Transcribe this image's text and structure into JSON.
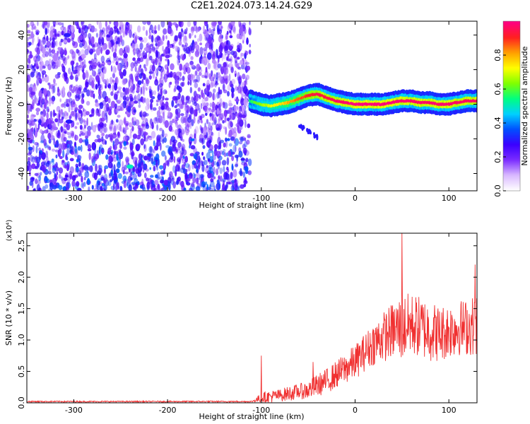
{
  "title": "C2E1.2024.073.14.24.G29",
  "chart_data": [
    {
      "type": "heatmap",
      "title": "",
      "xlabel": "Height of straight line (km)",
      "ylabel": "Frequency (Hz)",
      "xlim": [
        -350,
        130
      ],
      "ylim": [
        -50,
        48
      ],
      "xticks": [
        -300,
        -200,
        -100,
        0,
        100
      ],
      "yticks": [
        -40,
        -20,
        0,
        20,
        40
      ],
      "colorbar": {
        "label": "Normalized spectral amplitude",
        "range": [
          0,
          1
        ],
        "ticks": [
          "0.0",
          "0.2",
          "0.4",
          "0.6",
          "0.8"
        ],
        "tick_values": [
          0.0,
          0.2,
          0.4,
          0.6,
          0.8
        ],
        "colors": [
          "#ffffff",
          "#d9b8ff",
          "#7a2cff",
          "#3a00ff",
          "#0050ff",
          "#00d0ff",
          "#00ff80",
          "#80ff00",
          "#ffff00",
          "#ffa000",
          "#ff2020",
          "#ff0080"
        ]
      },
      "noise_region_x": [
        -350,
        -112
      ],
      "noise_amplitude": [
        0.1,
        0.3
      ],
      "signal_track": [
        {
          "x": -112,
          "y": 2,
          "amp": 0.55
        },
        {
          "x": -100,
          "y": 0,
          "amp": 0.65
        },
        {
          "x": -90,
          "y": -1,
          "amp": 0.7
        },
        {
          "x": -80,
          "y": 0,
          "amp": 0.75
        },
        {
          "x": -70,
          "y": 1,
          "amp": 0.8
        },
        {
          "x": -60,
          "y": 3,
          "amp": 0.85
        },
        {
          "x": -50,
          "y": 5,
          "amp": 0.9
        },
        {
          "x": -40,
          "y": 6,
          "amp": 0.95
        },
        {
          "x": -30,
          "y": 4,
          "amp": 0.95
        },
        {
          "x": -20,
          "y": 2,
          "amp": 0.97
        },
        {
          "x": -10,
          "y": 1,
          "amp": 0.98
        },
        {
          "x": 0,
          "y": 0,
          "amp": 1.0
        },
        {
          "x": 10,
          "y": 0,
          "amp": 1.0
        },
        {
          "x": 20,
          "y": 0,
          "amp": 1.0
        },
        {
          "x": 30,
          "y": 0,
          "amp": 0.99
        },
        {
          "x": 40,
          "y": 1,
          "amp": 0.99
        },
        {
          "x": 50,
          "y": 2,
          "amp": 0.99
        },
        {
          "x": 60,
          "y": 2,
          "amp": 0.98
        },
        {
          "x": 70,
          "y": 1,
          "amp": 0.98
        },
        {
          "x": 80,
          "y": 1,
          "amp": 0.98
        },
        {
          "x": 90,
          "y": 0,
          "amp": 0.98
        },
        {
          "x": 100,
          "y": 0,
          "amp": 0.98
        },
        {
          "x": 110,
          "y": 1,
          "amp": 0.97
        },
        {
          "x": 120,
          "y": 2,
          "amp": 0.97
        },
        {
          "x": 130,
          "y": 2,
          "amp": 0.97
        }
      ],
      "hot_spots": [
        {
          "x": -240,
          "y": -36,
          "amp": 0.5
        },
        {
          "x": -307,
          "y": 40,
          "amp": 0.3
        },
        {
          "x": -305,
          "y": -10,
          "amp": 0.3
        }
      ]
    },
    {
      "type": "line",
      "title": "",
      "xlabel": "Height of straight line (km)",
      "ylabel": "SNR (10 * v/v)",
      "y_multiplier": "(x10⁴)",
      "xlim": [
        -350,
        130
      ],
      "ylim": [
        0,
        2.7
      ],
      "xticks": [
        -300,
        -200,
        -100,
        0,
        100
      ],
      "yticks": [
        "0.0",
        "0.5",
        "1.0",
        "1.5",
        "2.0",
        "2.5"
      ],
      "ytick_values": [
        0.0,
        0.5,
        1.0,
        1.5,
        2.0,
        2.5
      ],
      "color": "#f03030",
      "envelope": {
        "x": [
          -350,
          -110,
          -100,
          -90,
          -80,
          -70,
          -60,
          -50,
          -40,
          -30,
          -20,
          -10,
          0,
          10,
          20,
          30,
          40,
          50,
          60,
          70,
          80,
          90,
          100,
          110,
          120,
          130
        ],
        "mean": [
          0.02,
          0.02,
          0.08,
          0.1,
          0.12,
          0.15,
          0.18,
          0.2,
          0.28,
          0.35,
          0.45,
          0.55,
          0.65,
          0.8,
          0.95,
          1.05,
          1.15,
          1.2,
          1.25,
          1.2,
          1.15,
          1.1,
          1.15,
          1.2,
          1.2,
          1.25
        ],
        "spread": [
          0.01,
          0.01,
          0.08,
          0.1,
          0.1,
          0.12,
          0.12,
          0.15,
          0.18,
          0.2,
          0.22,
          0.25,
          0.28,
          0.3,
          0.35,
          0.4,
          0.45,
          0.55,
          0.5,
          0.5,
          0.5,
          0.45,
          0.45,
          0.45,
          0.45,
          0.5
        ]
      },
      "peaks": [
        {
          "x": -100,
          "y": 0.75
        },
        {
          "x": -45,
          "y": 0.65
        },
        {
          "x": 50,
          "y": 2.7
        },
        {
          "x": 128,
          "y": 2.2
        }
      ]
    }
  ]
}
